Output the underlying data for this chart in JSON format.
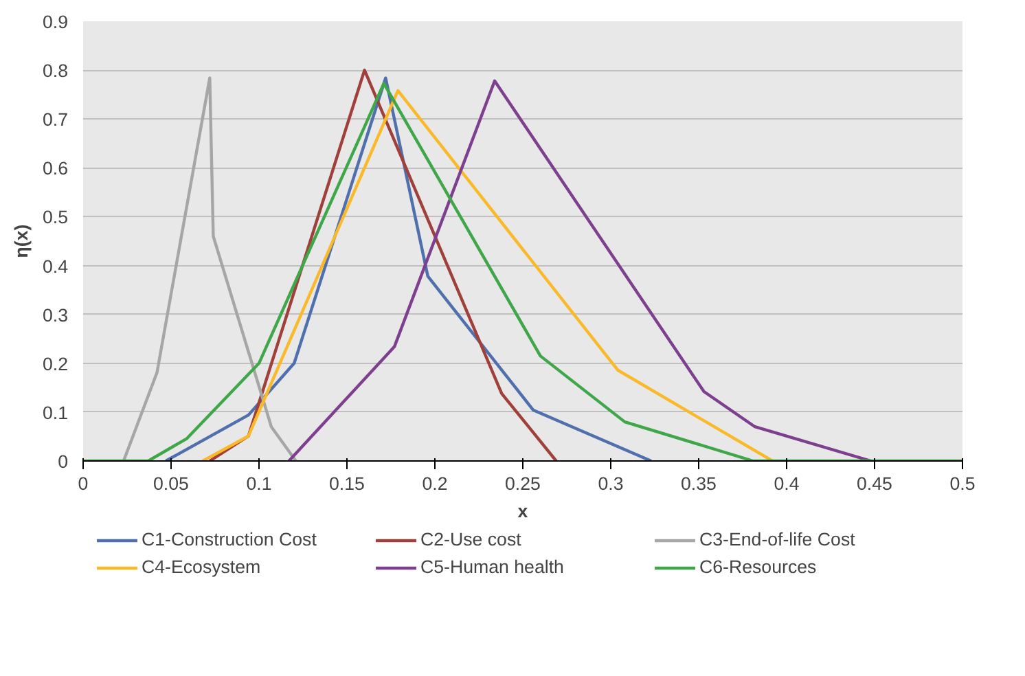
{
  "chart_data": {
    "type": "line",
    "xlabel": "x",
    "ylabel": "η(x)",
    "xlim": [
      0,
      0.5
    ],
    "ylim": [
      0,
      0.9
    ],
    "xticks": [
      0,
      0.05,
      0.1,
      0.15,
      0.2,
      0.25,
      0.3,
      0.35,
      0.4,
      0.45,
      0.5
    ],
    "yticks": [
      0,
      0.1,
      0.2,
      0.3,
      0.4,
      0.5,
      0.6,
      0.7,
      0.8,
      0.9
    ],
    "grid": "y",
    "legend": "bottom",
    "marker": "none",
    "line_style": "solid",
    "series": [
      {
        "name": "C1-Construction Cost",
        "color": "#4f6fad",
        "x": [
          0.047,
          0.094,
          0.12,
          0.172,
          0.196,
          0.256,
          0.323
        ],
        "values": [
          0,
          0.094,
          0.2,
          0.784,
          0.378,
          0.104,
          0
        ]
      },
      {
        "name": "C2-Use cost",
        "color": "#a0403a",
        "x": [
          0.072,
          0.094,
          0.16,
          0.238,
          0.269
        ],
        "values": [
          0,
          0.051,
          0.8,
          0.138,
          0
        ]
      },
      {
        "name": "C3-End-of-life Cost",
        "color": "#a6a6a6",
        "x": [
          0.023,
          0.042,
          0.072,
          0.074,
          0.107,
          0.121
        ],
        "values": [
          0,
          0.181,
          0.784,
          0.46,
          0.07,
          0
        ]
      },
      {
        "name": "C4-Ecosystem",
        "color": "#f9b928",
        "x": [
          0.068,
          0.094,
          0.179,
          0.304,
          0.392
        ],
        "values": [
          0,
          0.051,
          0.758,
          0.186,
          0
        ]
      },
      {
        "name": "C5-Human health",
        "color": "#7e3f8f",
        "x": [
          0.117,
          0.177,
          0.234,
          0.353,
          0.382,
          0.448
        ],
        "values": [
          0,
          0.234,
          0.778,
          0.142,
          0.07,
          0
        ]
      },
      {
        "name": "C6-Resources",
        "color": "#3fa64a",
        "x": [
          0,
          0.037,
          0.059,
          0.1,
          0.171,
          0.26,
          0.308,
          0.381,
          0.5
        ],
        "values": [
          0,
          0,
          0.046,
          0.2,
          0.773,
          0.215,
          0.08,
          0,
          0
        ]
      }
    ]
  }
}
